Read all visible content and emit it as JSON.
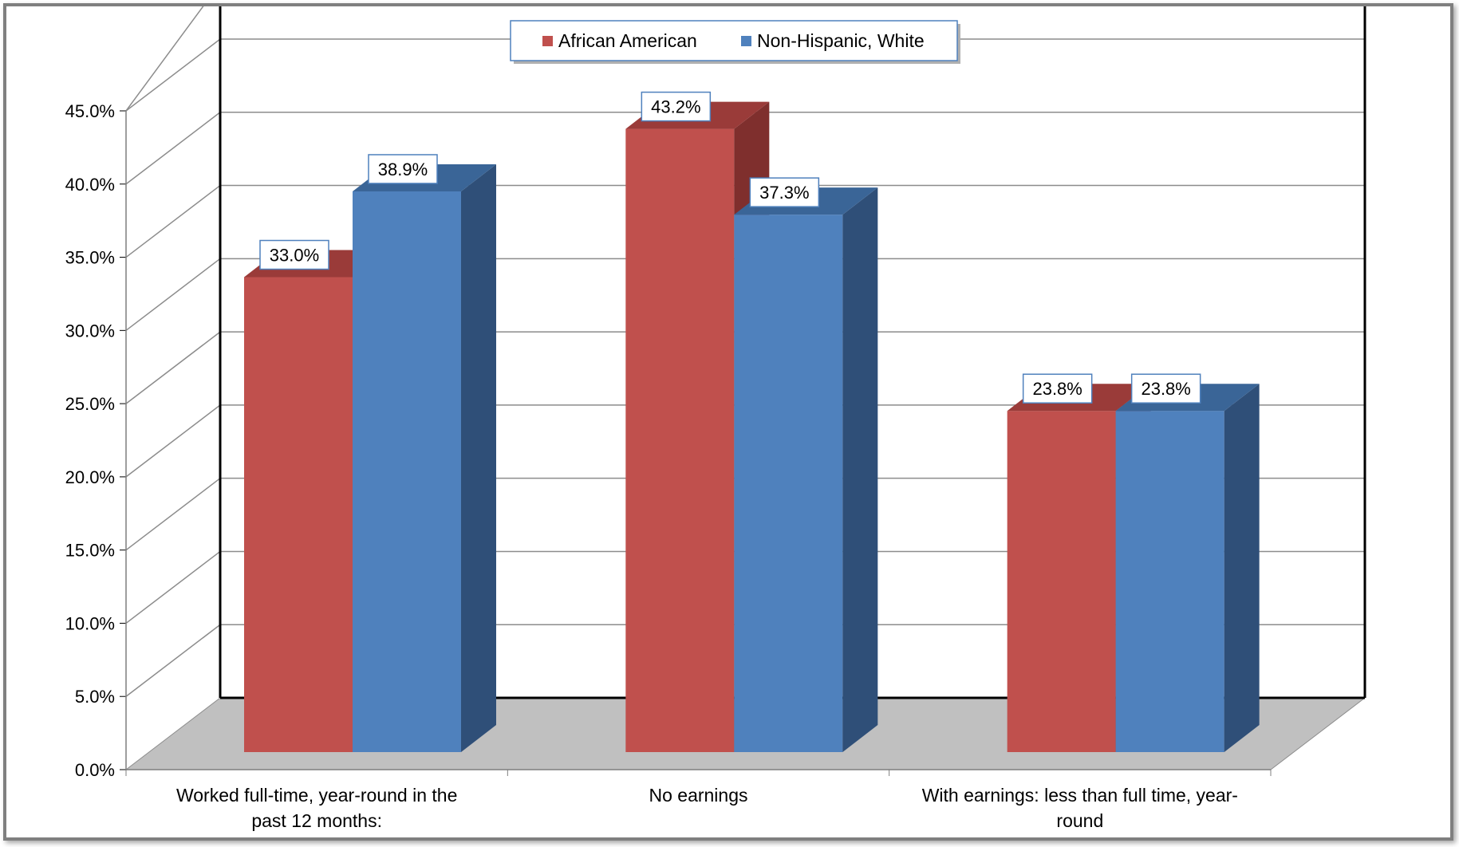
{
  "chart_data": {
    "type": "bar",
    "categories": [
      "Worked full-time, year-round in the past 12 months:",
      "No earnings",
      "With earnings: less than full time, year-round"
    ],
    "category_lines": [
      [
        "Worked full-time, year-round in the",
        "past 12 months:"
      ],
      [
        "No earnings"
      ],
      [
        "With earnings: less than full time, year-",
        "round"
      ]
    ],
    "series": [
      {
        "name": "African American",
        "values": [
          33.0,
          43.2,
          23.8
        ],
        "labels": [
          "33.0%",
          "43.2%",
          "23.8%"
        ],
        "color": "#c0504d",
        "side_color": "#7f2f2d",
        "top_color": "#9a3b39"
      },
      {
        "name": "Non-Hispanic, White",
        "values": [
          38.9,
          37.3,
          23.8
        ],
        "labels": [
          "38.9%",
          "37.3%",
          "23.8%"
        ],
        "color": "#4f81bd",
        "side_color": "#2f4f78",
        "top_color": "#3a6597"
      }
    ],
    "ylim": [
      0,
      45
    ],
    "yticks": [
      "0.0%",
      "5.0%",
      "10.0%",
      "15.0%",
      "20.0%",
      "25.0%",
      "30.0%",
      "35.0%",
      "40.0%",
      "45.0%"
    ],
    "legend_position": "top-center",
    "grid": true,
    "style": "3d-clustered-column",
    "title": "",
    "xlabel": "",
    "ylabel": ""
  }
}
